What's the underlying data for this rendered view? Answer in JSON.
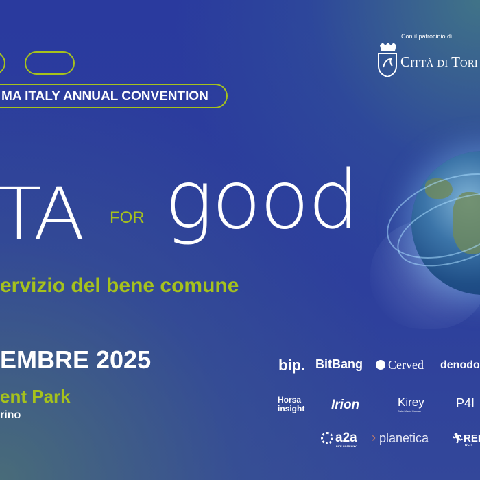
{
  "header": {
    "convention_label": "MA ITALY ANNUAL CONVENTION",
    "patronage_label": "Con il patrocinio di",
    "patron_name": "Città di Tori"
  },
  "title": {
    "left_part": "TA",
    "for_label": "FOR",
    "good_part": "good",
    "subtitle": "ervizio del bene comune"
  },
  "event": {
    "date": "EMBRE 2025",
    "venue": "ent Park",
    "city": "rino"
  },
  "sponsors": {
    "row1": [
      "bip.",
      "BitBang",
      "Cerved",
      "denodo"
    ],
    "row2": [
      "Horsa insight",
      "Irion",
      "Kirey",
      "P4I"
    ],
    "row3": [
      "a2a",
      "planetica",
      "REF"
    ],
    "kirey_tagline": "Data Made Human",
    "a2a_tagline": "LIFE COMPANY",
    "ref_tagline": "RED"
  },
  "colors": {
    "background": "#2a3a9e",
    "accent_green": "#a6c21c",
    "text": "#ffffff"
  },
  "icons": [
    "city-crest-icon",
    "globe-icon",
    "people-icon",
    "cerved-logo-icon",
    "a2a-logo-icon",
    "runner-icon"
  ]
}
